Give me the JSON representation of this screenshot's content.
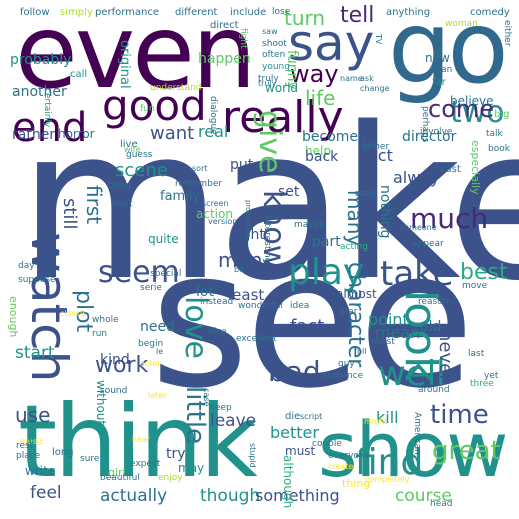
{
  "words": {
    "make": "make",
    "see": "see",
    "even": "even",
    "go": "go",
    "think": "think",
    "show": "show",
    "end": "end",
    "good": "good",
    "say": "say",
    "really": "really",
    "two": "two",
    "come": "come",
    "way": "way",
    "tell": "tell",
    "turn": "turn",
    "watch": "watch",
    "seem": "seem",
    "look": "look",
    "play": "play",
    "take": "take",
    "know": "know",
    "give": "give",
    "much": "much",
    "well": "well",
    "find": "find",
    "great": "great",
    "little": "little",
    "love": "love",
    "bad": "bad",
    "character": "character",
    "time": "time",
    "plot": "plot",
    "work": "work",
    "scene": "scene",
    "want": "want",
    "life": "life",
    "first": "first",
    "still": "still",
    "many": "many",
    "man": "man",
    "best": "best",
    "start": "start",
    "use": "use",
    "feel": "feel",
    "actually": "actually",
    "though": "though",
    "something": "something",
    "course": "course",
    "better": "better",
    "leave": "leave",
    "kill": "kill",
    "never": "never",
    "mean": "mean",
    "fact": "fact",
    "need": "need",
    "kind": "kind",
    "point": "point",
    "part": "part",
    "nothing": "nothing",
    "alway": "alway",
    "act": "act",
    "become": "become",
    "director": "director",
    "real": "real",
    "set": "set",
    "put": "put",
    "right": "right",
    "least": "least",
    "lot": "lot",
    "family": "family",
    "quite": "quite",
    "action": "action",
    "another": "another",
    "rather": "rather",
    "horror": "horror",
    "probably": "probably",
    "funny": "funny",
    "happen": "happen",
    "original": "original",
    "believe": "believe",
    "new": "new",
    "world": "world",
    "help": "help",
    "back": "back",
    "old": "old",
    "try": "try",
    "must": "must",
    "although": "although",
    "may": "may",
    "without": "without",
    "write": "write",
    "girl": "girl",
    "thing": "thing",
    "almost": "almost",
    "follow": "follow",
    "simply": "simply",
    "performance": "performance",
    "different": "different",
    "include": "include",
    "lose": "lose",
    "anything": "anything",
    "comedy": "comedy",
    "woman": "woman",
    "direct": "direct",
    "fight": "fight",
    "shoot": "shoot",
    "often": "often",
    "young": "young",
    "name": "name",
    "ask": "ask",
    "far": "far",
    "change": "change",
    "call": "call",
    "fun": "fun",
    "understand": "understand",
    "truly": "truly",
    "certainly": "certainly",
    "dialogue": "dialogue",
    "perhaps": "perhaps",
    "involve": "involve",
    "talk": "talk",
    "especially": "especially",
    "book": "book",
    "father": "father",
    "cast": "cast",
    "big": "big",
    "live": "live",
    "guess": "guess",
    "sort": "sort",
    "remember": "remember",
    "interesting": "interesting",
    "read": "read",
    "bring": "bring",
    "short": "short",
    "screen": "screen",
    "version": "version",
    "production": "production",
    "maybe": "maybe",
    "acting": "acting",
    "someone": "someone",
    "appear": "appear",
    "day": "day",
    "suppose": "suppose",
    "special": "special",
    "bit": "bit",
    "serie": "serie",
    "instead": "instead",
    "wonderful": "wonderful",
    "idea": "idea",
    "star": "star",
    "reason": "reason",
    "move": "move",
    "enough": "enough",
    "whole": "whole",
    "begin": "begin",
    "nice": "nice",
    "excellent": "excellent",
    "worst": "worst",
    "run": "run",
    "classic": "classic",
    "actor": "actor",
    "guy": "guy",
    "audience": "audience",
    "sound": "sound",
    "later": "later",
    "case": "case",
    "around": "around",
    "three": "three",
    "last": "last",
    "yet": "yet",
    "keep": "keep",
    "die": "die",
    "script": "script",
    "american": "American",
    "might": "might",
    "music": "music",
    "hear": "hear",
    "rest": "rest",
    "place": "place",
    "long": "long",
    "sure": "sure",
    "expect": "expect",
    "beautiful": "beautiful",
    "enjoy": "enjoy",
    "stupid": "stupid",
    "couple": "couple",
    "everyone": "everyone",
    "create": "create",
    "completely": "completely",
    "head": "head",
    "either": "either",
    "tv": "TV",
    "saw": "saw",
    "truly2": "truly",
    "fan": "fan",
    "wife": "wife",
    "le": "le",
    "roll": "roll"
  }
}
